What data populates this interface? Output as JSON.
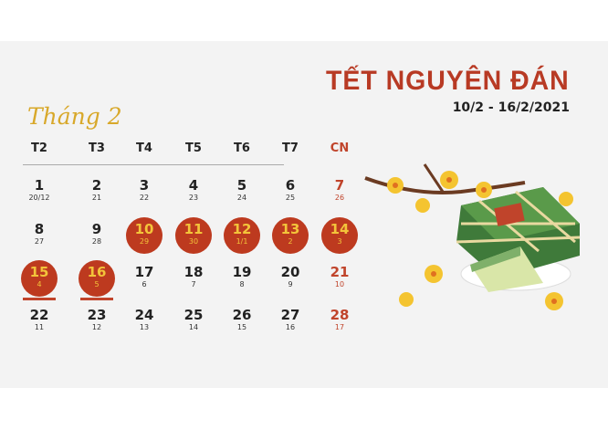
{
  "title": "TẾT NGUYÊN ĐÁN",
  "date_range": "10/2 - 16/2/2021",
  "month_label": "Tháng 2",
  "weekdays": [
    "T2",
    "T3",
    "T4",
    "T5",
    "T6",
    "T7",
    "CN"
  ],
  "colors": {
    "accent": "#bd3a1f",
    "gold": "#d8a82a",
    "highlight_text": "#f3c43a"
  },
  "tet_days": [
    "10",
    "11",
    "12",
    "13",
    "14",
    "15",
    "16"
  ],
  "weeks": [
    [
      {
        "d": "1",
        "l": "20/12"
      },
      {
        "d": "2",
        "l": "21"
      },
      {
        "d": "3",
        "l": "22"
      },
      {
        "d": "4",
        "l": "23"
      },
      {
        "d": "5",
        "l": "24"
      },
      {
        "d": "6",
        "l": "25"
      },
      {
        "d": "7",
        "l": "26"
      }
    ],
    [
      {
        "d": "8",
        "l": "27"
      },
      {
        "d": "9",
        "l": "28"
      },
      {
        "d": "10",
        "l": "29"
      },
      {
        "d": "11",
        "l": "30"
      },
      {
        "d": "12",
        "l": "1/1"
      },
      {
        "d": "13",
        "l": "2"
      },
      {
        "d": "14",
        "l": "3"
      }
    ],
    [
      {
        "d": "15",
        "l": "4"
      },
      {
        "d": "16",
        "l": "5"
      },
      {
        "d": "17",
        "l": "6"
      },
      {
        "d": "18",
        "l": "7"
      },
      {
        "d": "19",
        "l": "8"
      },
      {
        "d": "20",
        "l": "9"
      },
      {
        "d": "21",
        "l": "10"
      }
    ],
    [
      {
        "d": "22",
        "l": "11"
      },
      {
        "d": "23",
        "l": "12"
      },
      {
        "d": "24",
        "l": "13"
      },
      {
        "d": "25",
        "l": "14"
      },
      {
        "d": "26",
        "l": "15"
      },
      {
        "d": "27",
        "l": "16"
      },
      {
        "d": "28",
        "l": "17"
      }
    ]
  ],
  "illustration": "banh-chung-and-apricot-blossom"
}
